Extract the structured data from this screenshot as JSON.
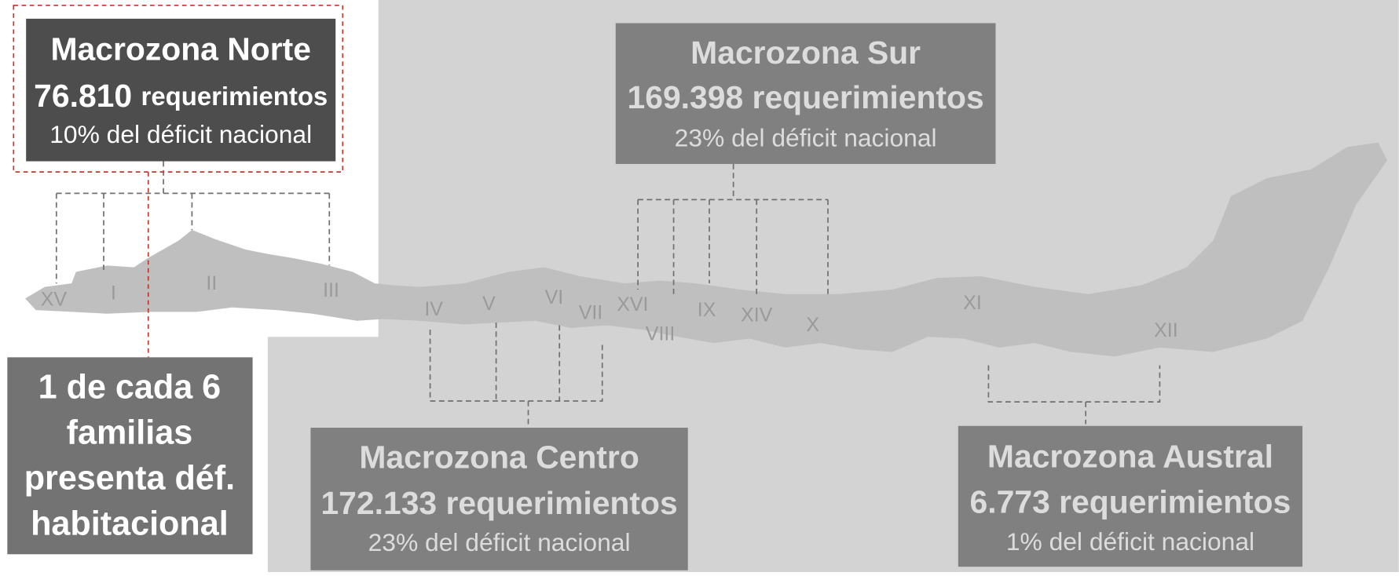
{
  "zones": [
    {
      "name": "Macrozona Norte",
      "count": "76.810",
      "unit": "requerimientos",
      "share": "10% del déficit nacional"
    },
    {
      "name": "Macrozona Sur",
      "count": "169.398",
      "unit": "requerimientos",
      "share": "23% del déficit nacional"
    },
    {
      "name": "Macrozona Centro",
      "count": "172.133",
      "unit": "requerimientos",
      "share": "23% del déficit nacional"
    },
    {
      "name": "Macrozona Austral",
      "count": "6.773",
      "unit": "requerimientos",
      "share": "1% del déficit nacional"
    }
  ],
  "regions": [
    "XV",
    "I",
    "II",
    "III",
    "IV",
    "V",
    "VI",
    "VII",
    "XVI",
    "VIII",
    "IX",
    "XIV",
    "X",
    "XI",
    "XII"
  ],
  "callout": [
    "1 de cada 6",
    "familias",
    "presenta déf.",
    "habitacional"
  ]
}
